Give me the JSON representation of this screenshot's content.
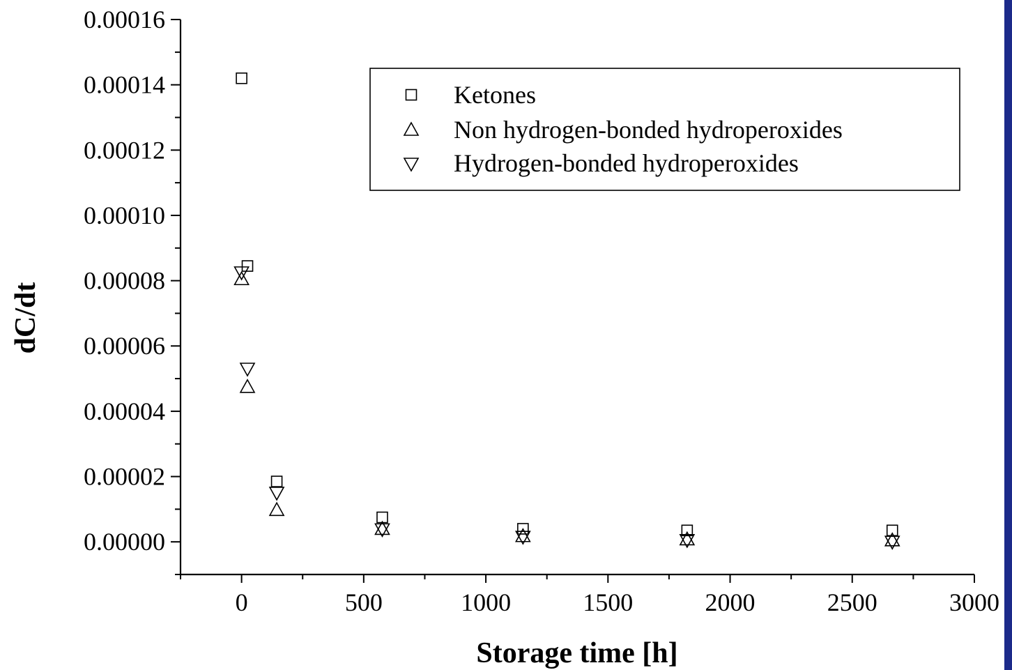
{
  "chart_data": {
    "type": "scatter",
    "xlabel": "Storage time [h]",
    "ylabel": "dC/dt",
    "xlim": [
      -250,
      3000
    ],
    "ylim": [
      -1e-05,
      0.00016
    ],
    "x_ticks": [
      0,
      500,
      1000,
      1500,
      2000,
      2500,
      3000
    ],
    "x_tick_labels": [
      "0",
      "500",
      "1000",
      "1500",
      "2000",
      "2500",
      "3000"
    ],
    "y_ticks": [
      0,
      2e-05,
      4e-05,
      6e-05,
      8e-05,
      0.0001,
      0.00012,
      0.00014,
      0.00016
    ],
    "y_tick_labels": [
      "0.00000",
      "0.00002",
      "0.00004",
      "0.00006",
      "0.00008",
      "0.00010",
      "0.00012",
      "0.00014",
      "0.00016"
    ],
    "grid": false,
    "legend_position": "top-right",
    "series": [
      {
        "name": "Ketones",
        "marker": "square",
        "points": [
          {
            "x": 0,
            "y": 0.000142
          },
          {
            "x": 24,
            "y": 8.45e-05
          },
          {
            "x": 144,
            "y": 1.85e-05
          },
          {
            "x": 576,
            "y": 7.5e-06
          },
          {
            "x": 1152,
            "y": 4e-06
          },
          {
            "x": 1824,
            "y": 3.5e-06
          },
          {
            "x": 2664,
            "y": 3.5e-06
          }
        ]
      },
      {
        "name": "Non hydrogen-bonded hydroperoxides",
        "marker": "triangle-up",
        "points": [
          {
            "x": 0,
            "y": 8.05e-05
          },
          {
            "x": 24,
            "y": 4.75e-05
          },
          {
            "x": 144,
            "y": 9.8e-06
          },
          {
            "x": 576,
            "y": 4e-06
          },
          {
            "x": 1152,
            "y": 1.8e-06
          },
          {
            "x": 1824,
            "y": 8e-07
          },
          {
            "x": 2664,
            "y": 5e-07
          }
        ]
      },
      {
        "name": "Hydrogen-bonded hydroperoxides",
        "marker": "triangle-down",
        "points": [
          {
            "x": 0,
            "y": 8.25e-05
          },
          {
            "x": 24,
            "y": 5.3e-05
          },
          {
            "x": 144,
            "y": 1.5e-05
          },
          {
            "x": 576,
            "y": 3.8e-06
          },
          {
            "x": 1152,
            "y": 1.5e-06
          },
          {
            "x": 1824,
            "y": 5e-07
          },
          {
            "x": 2664,
            "y": 0.0
          }
        ]
      }
    ]
  },
  "colors": {
    "axis": "#000000",
    "background": "#ffffff",
    "right_edge_bar": "#1c2a8a"
  }
}
